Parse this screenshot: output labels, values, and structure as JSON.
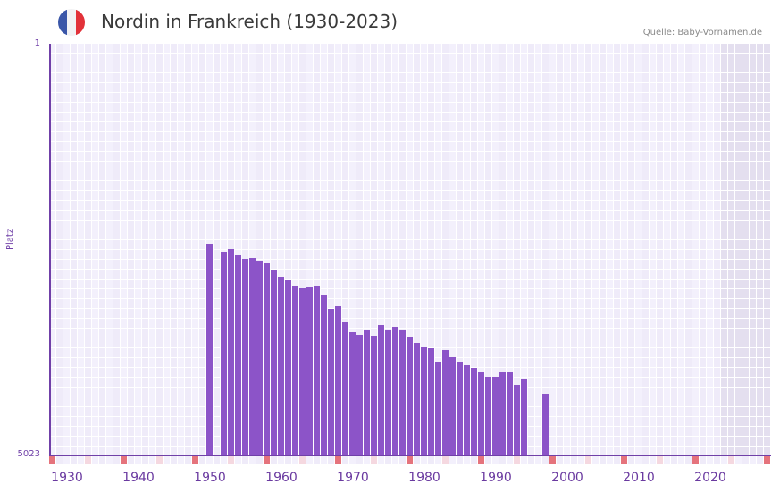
{
  "header": {
    "title": "Nordin in Frankreich (1930-2023)",
    "source": "Quelle: Baby-Vornamen.de",
    "flag": {
      "name": "france-flag",
      "colors": [
        "#3a56a8",
        "#f2f2f4",
        "#e23239"
      ]
    }
  },
  "colors": {
    "bar": "#8c54c8",
    "axis": "#7040a8",
    "decade_marker": "#e5737c",
    "mid_marker": "#f5d8e0",
    "grid_cell_a": "#efebf9",
    "grid_cell_b": "#f3f0fc",
    "future_shade": "#e4dfef"
  },
  "chart_data": {
    "type": "bar",
    "title": "Nordin in Frankreich (1930-2023)",
    "xlabel": "",
    "ylabel": "Platz",
    "y_inverted": true,
    "ylim": [
      1,
      5023
    ],
    "yticks": [
      "1",
      "5023"
    ],
    "xlim": [
      1928,
      2028
    ],
    "xticks": [
      "1930",
      "1940",
      "1950",
      "1960",
      "1970",
      "1980",
      "1990",
      "2000",
      "2010",
      "2020"
    ],
    "grid": true,
    "legend": null,
    "categories": [
      1950,
      1952,
      1953,
      1954,
      1955,
      1956,
      1957,
      1958,
      1959,
      1960,
      1961,
      1962,
      1963,
      1964,
      1965,
      1966,
      1967,
      1968,
      1969,
      1970,
      1971,
      1972,
      1973,
      1974,
      1975,
      1976,
      1977,
      1978,
      1979,
      1980,
      1981,
      1982,
      1983,
      1984,
      1985,
      1986,
      1987,
      1988,
      1989,
      1990,
      1991,
      1992,
      1993,
      1994,
      1997
    ],
    "series": [
      {
        "name": "Platz",
        "values": [
          2436,
          2534,
          2501,
          2567,
          2621,
          2610,
          2643,
          2676,
          2752,
          2840,
          2872,
          2949,
          2971,
          2960,
          2949,
          3058,
          3233,
          3200,
          3385,
          3516,
          3549,
          3494,
          3560,
          3429,
          3494,
          3451,
          3483,
          3571,
          3647,
          3691,
          3713,
          3877,
          3735,
          3822,
          3877,
          3920,
          3953,
          3997,
          4062,
          4062,
          4008,
          3997,
          4161,
          4084,
          4270
        ]
      }
    ],
    "shaded_region": {
      "from": 2022,
      "to": 2028,
      "note": "future years shaded grey"
    }
  }
}
